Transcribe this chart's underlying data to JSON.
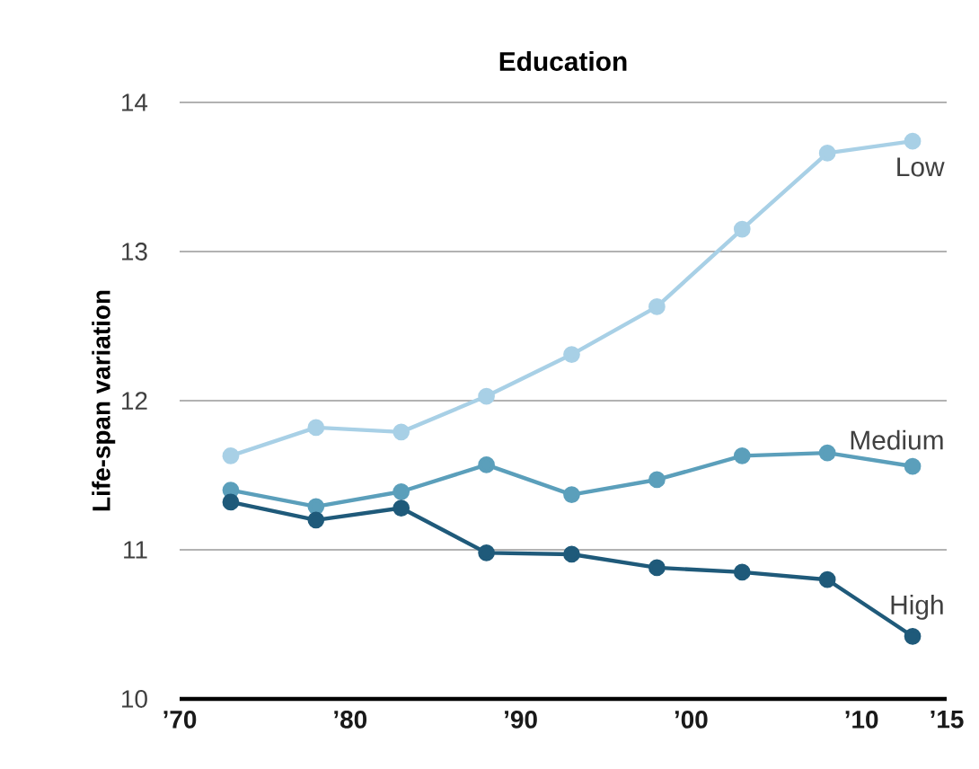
{
  "chart_data": {
    "type": "line",
    "title": "Education",
    "ylabel": "Life-span variation",
    "x": [
      1973,
      1978,
      1983,
      1988,
      1993,
      1998,
      2003,
      2008,
      2013
    ],
    "xlim": [
      1970,
      2015
    ],
    "xticks": [
      {
        "value": 1970,
        "label": "’70"
      },
      {
        "value": 1980,
        "label": "’80"
      },
      {
        "value": 1990,
        "label": "’90"
      },
      {
        "value": 2000,
        "label": "’00"
      },
      {
        "value": 2010,
        "label": "’10"
      },
      {
        "value": 2015,
        "label": "’15"
      }
    ],
    "ylim": [
      10,
      14
    ],
    "yticks": [
      10,
      11,
      12,
      13,
      14
    ],
    "grid": "y",
    "marker": "circle",
    "line_style": "solid",
    "series": [
      {
        "name": "Low",
        "color": "#a8d0e6",
        "values": [
          11.63,
          11.82,
          11.79,
          12.03,
          12.31,
          12.63,
          13.15,
          13.66,
          13.74
        ]
      },
      {
        "name": "Medium",
        "color": "#5b9fbb",
        "values": [
          11.4,
          11.29,
          11.39,
          11.57,
          11.37,
          11.47,
          11.63,
          11.65,
          11.56
        ]
      },
      {
        "name": "High",
        "color": "#1f5a7a",
        "values": [
          11.32,
          11.2,
          11.28,
          10.98,
          10.97,
          10.88,
          10.85,
          10.8,
          10.42
        ]
      }
    ]
  }
}
